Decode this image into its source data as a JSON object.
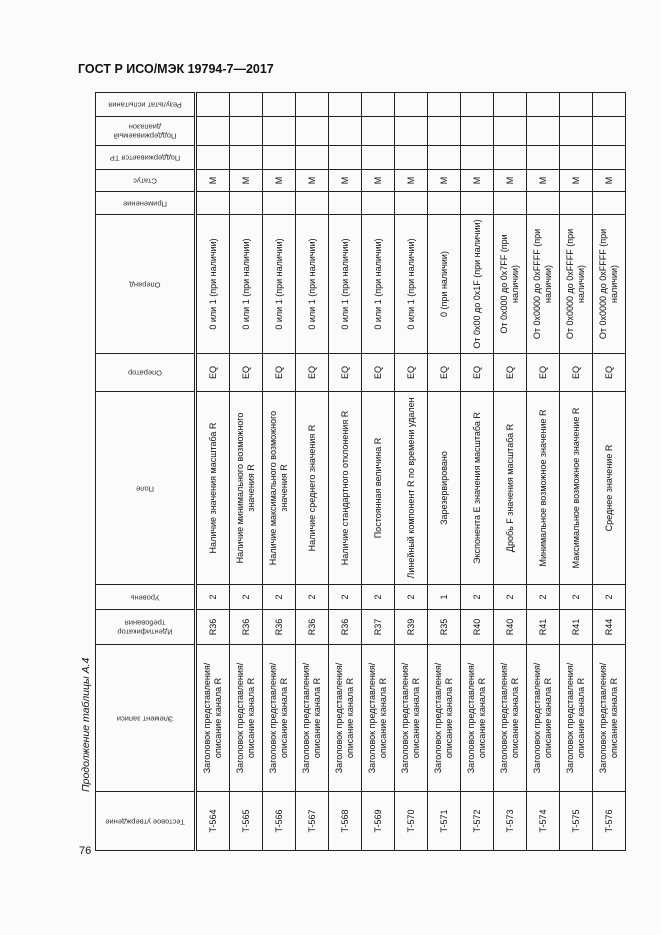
{
  "header": {
    "title": "ГОСТ Р ИСО/МЭК 19794-7—2017"
  },
  "page_number": "76",
  "caption": "Продолжение таблицы А.4",
  "table": {
    "columns": [
      "Тестовое утверждение",
      "Элемент записи",
      "Идентификатор требования",
      "Уровень",
      "Поле",
      "Оператор",
      "Операнд",
      "Применение",
      "Статус",
      "Поддерживается ТР",
      "Поддерживаемый диапазон",
      "Результат испытания"
    ],
    "rows": [
      [
        "T-564",
        "Заголовок представления/ описание канала R",
        "R36",
        "2",
        "Наличие значения масштаба R",
        "EQ",
        "0 или 1 (при наличии)",
        "",
        "M",
        "",
        "",
        ""
      ],
      [
        "T-565",
        "Заголовок представления/ описание канала R",
        "R36",
        "2",
        "Наличие минимального возможного значения R",
        "EQ",
        "0 или 1 (при наличии)",
        "",
        "M",
        "",
        "",
        ""
      ],
      [
        "T-566",
        "Заголовок представления/ описание канала R",
        "R36",
        "2",
        "Наличие максимального возможного значения R",
        "EQ",
        "0 или 1 (при наличии)",
        "",
        "M",
        "",
        "",
        ""
      ],
      [
        "T-567",
        "Заголовок представления/ описание канала R",
        "R36",
        "2",
        "Наличие среднего значения R",
        "EQ",
        "0 или 1 (при наличии)",
        "",
        "M",
        "",
        "",
        ""
      ],
      [
        "T-568",
        "Заголовок представления/ описание канала R",
        "R36",
        "2",
        "Наличие стандартного отклонения R",
        "EQ",
        "0 или 1 (при наличии)",
        "",
        "M",
        "",
        "",
        ""
      ],
      [
        "T-569",
        "Заголовок представления/ описание канала R",
        "R37",
        "2",
        "Постоянная величина R",
        "EQ",
        "0 или 1 (при наличии)",
        "",
        "M",
        "",
        "",
        ""
      ],
      [
        "T-570",
        "Заголовок представления/ описание канала R",
        "R39",
        "2",
        "Линейный компонент R по времени удален",
        "EQ",
        "0 или 1 (при наличии)",
        "",
        "M",
        "",
        "",
        ""
      ],
      [
        "T-571",
        "Заголовок представления/ описание канала R",
        "R35",
        "1",
        "Зарезервировано",
        "EQ",
        "0 (при наличии)",
        "",
        "M",
        "",
        "",
        ""
      ],
      [
        "T-572",
        "Заголовок представления/ описание канала R",
        "R40",
        "2",
        "Экспонента E значения масштаба R",
        "EQ",
        "От 0x00 до 0x1F (при наличии)",
        "",
        "M",
        "",
        "",
        ""
      ],
      [
        "T-573",
        "Заголовок представления/ описание канала R",
        "R40",
        "2",
        "Дробь F значения масштаба R",
        "EQ",
        "От 0x000 до 0x7FF (при наличии)",
        "",
        "M",
        "",
        "",
        ""
      ],
      [
        "T-574",
        "Заголовок представления/ описание канала R",
        "R41",
        "2",
        "Минимальное возможное значение R",
        "EQ",
        "От 0x0000 до 0xFFFF (при наличии)",
        "",
        "M",
        "",
        "",
        ""
      ],
      [
        "T-575",
        "Заголовок представления/ описание канала R",
        "R41",
        "2",
        "Максимальное возможное значение R",
        "EQ",
        "От 0x0000 до 0xFFFF (при наличии)",
        "",
        "M",
        "",
        "",
        ""
      ],
      [
        "T-576",
        "Заголовок представления/ описание канала R",
        "R44",
        "2",
        "Среднее значение R",
        "EQ",
        "От 0x0000 до 0xFFFF (при наличии)",
        "",
        "M",
        "",
        "",
        ""
      ]
    ]
  }
}
